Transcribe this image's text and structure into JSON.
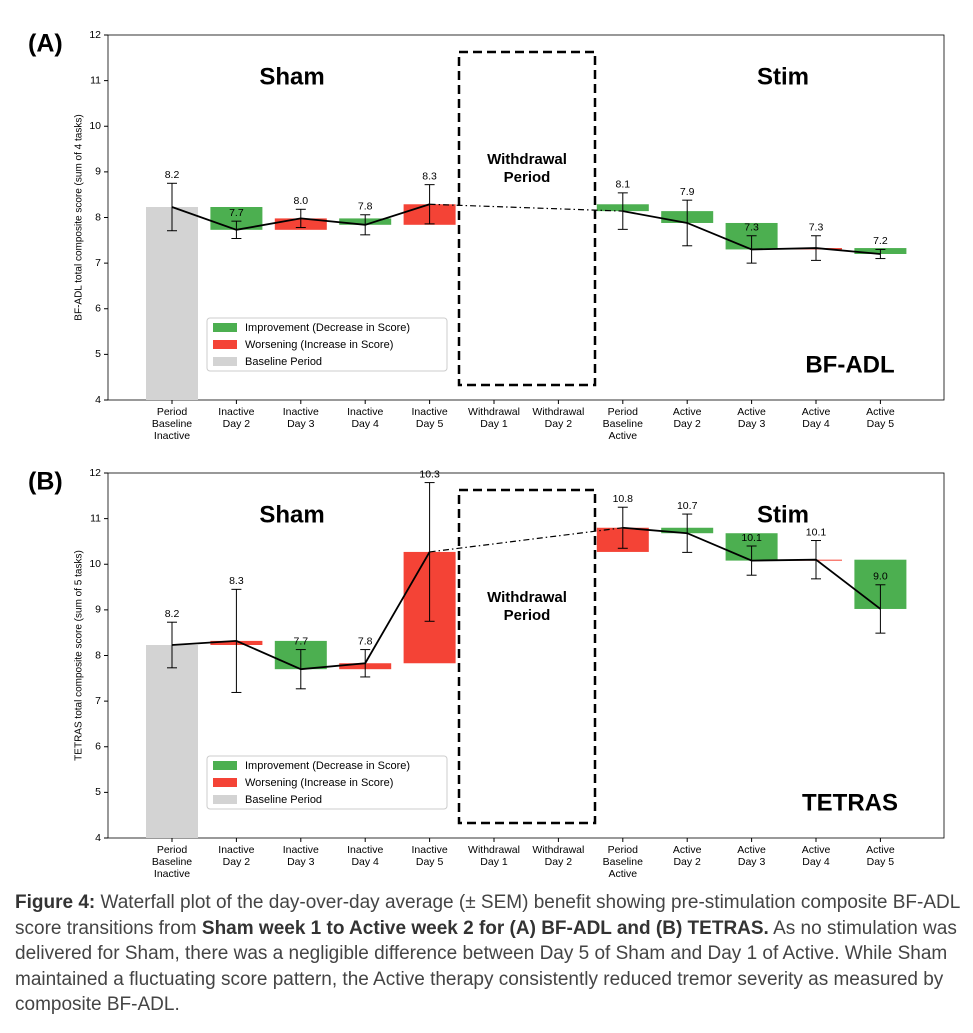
{
  "chart_data": [
    {
      "type": "waterfall",
      "panel": "(A)",
      "ylabel": "BF-ADL total composite score (sum of 4 tasks)",
      "categories": [
        [
          "Period",
          "Baseline",
          "Inactive"
        ],
        [
          "Inactive",
          "Day 2"
        ],
        [
          "Inactive",
          "Day 3"
        ],
        [
          "Inactive",
          "Day 4"
        ],
        [
          "Inactive",
          "Day 5"
        ],
        [
          "Withdrawal",
          "Day 1"
        ],
        [
          "Withdrawal",
          "Day 2"
        ],
        [
          "Period",
          "Baseline",
          "Active"
        ],
        [
          "Active",
          "Day 2"
        ],
        [
          "Active",
          "Day 3"
        ],
        [
          "Active",
          "Day 4"
        ],
        [
          "Active",
          "Day 5"
        ]
      ],
      "values": [
        8.23,
        7.73,
        7.98,
        7.84,
        8.29,
        null,
        null,
        8.14,
        7.88,
        7.3,
        7.33,
        7.2
      ],
      "value_labels": [
        "8.2",
        "7.7",
        "8.0",
        "7.8",
        "8.3",
        null,
        null,
        "8.1",
        "7.9",
        "7.3",
        "7.3",
        "7.2"
      ],
      "errors": [
        0.52,
        0.19,
        0.2,
        0.22,
        0.43,
        null,
        null,
        0.4,
        0.5,
        0.3,
        0.27,
        0.1
      ],
      "ylim": [
        4,
        12
      ],
      "yticks": [
        4,
        5,
        6,
        7,
        8,
        9,
        10,
        11,
        12
      ],
      "legend": [
        {
          "label": "Improvement (Decrease in Score)",
          "color": "#4caf50"
        },
        {
          "label": "Worsening (Increase in Score)",
          "color": "#f44336"
        },
        {
          "label": "Baseline Period",
          "color": "#d3d3d3"
        }
      ],
      "legend_corner": "lower left",
      "sham_label": "Sham",
      "stim_label": "Stim",
      "withdrawal_label": [
        "Withdrawal",
        "Period"
      ],
      "measure_label": "BF-ADL"
    },
    {
      "type": "waterfall",
      "panel": "(B)",
      "ylabel": "TETRAS total composite score (sum of 5 tasks)",
      "categories": [
        [
          "Period",
          "Baseline",
          "Inactive"
        ],
        [
          "Inactive",
          "Day 2"
        ],
        [
          "Inactive",
          "Day 3"
        ],
        [
          "Inactive",
          "Day 4"
        ],
        [
          "Inactive",
          "Day 5"
        ],
        [
          "Withdrawal",
          "Day 1"
        ],
        [
          "Withdrawal",
          "Day 2"
        ],
        [
          "Period",
          "Baseline",
          "Active"
        ],
        [
          "Active",
          "Day 2"
        ],
        [
          "Active",
          "Day 3"
        ],
        [
          "Active",
          "Day 4"
        ],
        [
          "Active",
          "Day 5"
        ]
      ],
      "values": [
        8.23,
        8.32,
        7.7,
        7.83,
        10.27,
        null,
        null,
        10.8,
        10.68,
        10.08,
        10.1,
        9.02
      ],
      "value_labels": [
        "8.2",
        "8.3",
        "7.7",
        "7.8",
        "10.3",
        null,
        null,
        "10.8",
        "10.7",
        "10.1",
        "10.1",
        "9.0"
      ],
      "errors": [
        0.5,
        1.13,
        0.43,
        0.3,
        1.52,
        null,
        null,
        0.45,
        0.42,
        0.32,
        0.42,
        0.53
      ],
      "ylim": [
        4,
        12
      ],
      "yticks": [
        4,
        5,
        6,
        7,
        8,
        9,
        10,
        11,
        12
      ],
      "legend": [
        {
          "label": "Improvement (Decrease in Score)",
          "color": "#4caf50"
        },
        {
          "label": "Worsening (Increase in Score)",
          "color": "#f44336"
        },
        {
          "label": "Baseline Period",
          "color": "#d3d3d3"
        }
      ],
      "legend_corner": "lower left",
      "sham_label": "Sham",
      "stim_label": "Stim",
      "withdrawal_label": [
        "Withdrawal",
        "Period"
      ],
      "measure_label": "TETRAS"
    }
  ],
  "caption": [
    {
      "text": "Figure 4:",
      "bold": true
    },
    {
      "text": " Waterfall plot of the day-over-day average (± SEM) benefit showing pre-stimulation composite BF-ADL score transitions from ",
      "bold": false
    },
    {
      "text": "Sham week 1 to Active week 2 for (A) BF-ADL and (B) TETRAS.",
      "bold": true
    },
    {
      "text": " As no stimulation was delivered for Sham, there was a negligible difference between Day 5 of Sham and Day 1 of Active. While Sham maintained a fluctuating score pattern, the Active therapy consistently reduced tremor severity as measured by composite BF-ADL.",
      "bold": false
    }
  ]
}
